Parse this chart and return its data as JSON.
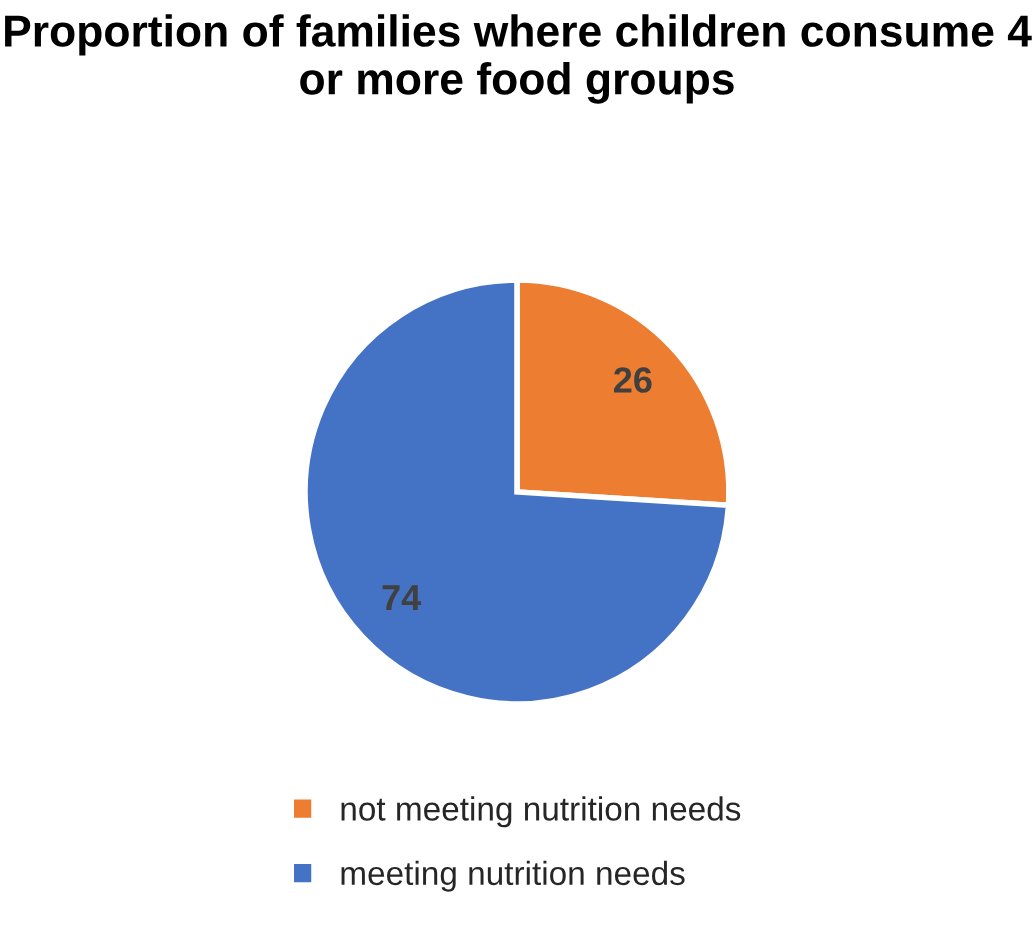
{
  "chart_data": {
    "type": "pie",
    "title": "Proportion of families where children consume 4 or more food groups",
    "categories": [
      "not meeting nutrition needs",
      "meeting nutrition needs"
    ],
    "values": [
      26,
      74
    ],
    "colors": [
      "#ed7d31",
      "#4472c4"
    ],
    "data_labels": true,
    "legend": "bottom"
  }
}
